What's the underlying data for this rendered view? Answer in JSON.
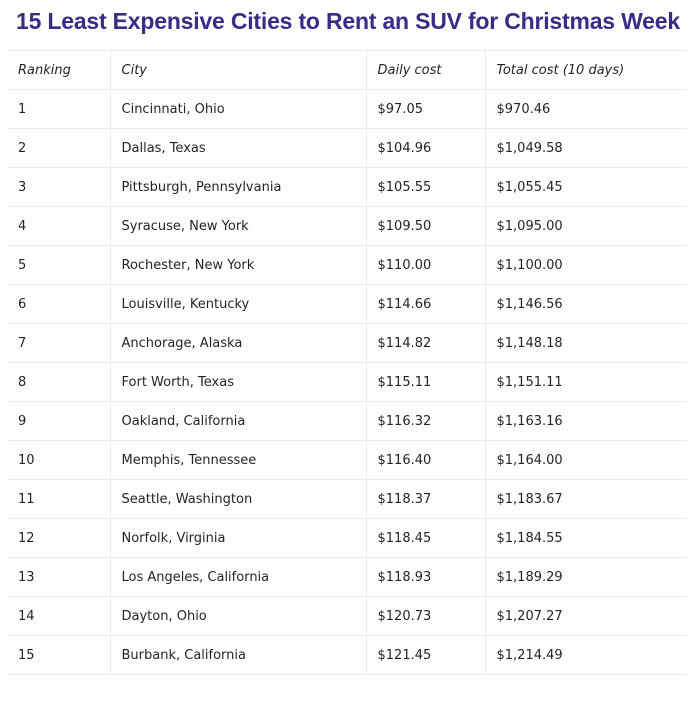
{
  "title": "15 Least Expensive Cities to Rent an SUV for Christmas Week",
  "table": {
    "headers": [
      "Ranking",
      "City",
      "Daily cost",
      "Total cost (10 days)"
    ],
    "rows": [
      [
        "1",
        "Cincinnati, Ohio",
        "$97.05",
        "$970.46"
      ],
      [
        "2",
        "Dallas, Texas",
        "$104.96",
        "$1,049.58"
      ],
      [
        "3",
        "Pittsburgh, Pennsylvania",
        "$105.55",
        "$1,055.45"
      ],
      [
        "4",
        "Syracuse, New York",
        "$109.50",
        "$1,095.00"
      ],
      [
        "5",
        "Rochester, New York",
        "$110.00",
        "$1,100.00"
      ],
      [
        "6",
        "Louisville, Kentucky",
        "$114.66",
        "$1,146.56"
      ],
      [
        "7",
        "Anchorage, Alaska",
        "$114.82",
        "$1,148.18"
      ],
      [
        "8",
        "Fort Worth, Texas",
        "$115.11",
        "$1,151.11"
      ],
      [
        "9",
        "Oakland, California",
        "$116.32",
        "$1,163.16"
      ],
      [
        "10",
        "Memphis, Tennessee",
        "$116.40",
        "$1,164.00"
      ],
      [
        "11",
        "Seattle, Washington",
        "$118.37",
        "$1,183.67"
      ],
      [
        "12",
        "Norfolk, Virginia",
        "$118.45",
        "$1,184.55"
      ],
      [
        "13",
        "Los Angeles, California",
        "$118.93",
        "$1,189.29"
      ],
      [
        "14",
        "Dayton, Ohio",
        "$120.73",
        "$1,207.27"
      ],
      [
        "15",
        "Burbank, California",
        "$121.45",
        "$1,214.49"
      ]
    ]
  },
  "colors": {
    "title": "#3b2a86",
    "border": "#e3eef0",
    "text": "#1f2327"
  }
}
